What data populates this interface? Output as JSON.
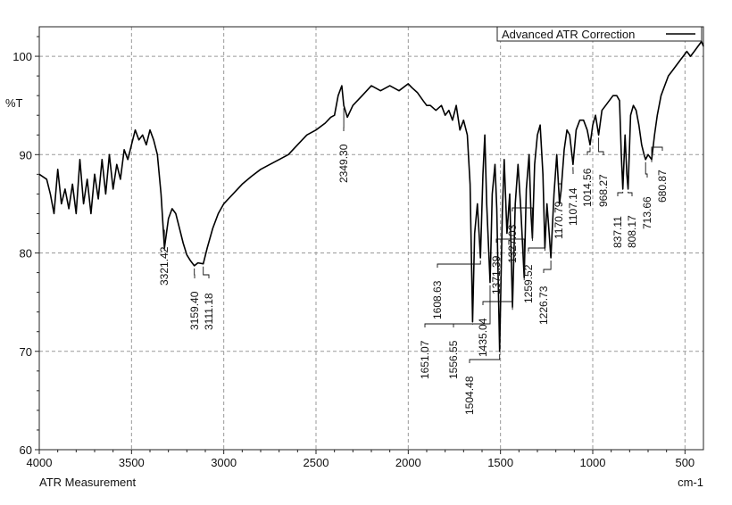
{
  "chart_data": {
    "type": "line",
    "title": "",
    "xlabel": "ATR Measurement",
    "xunit": "cm-1",
    "ylabel": "%T",
    "xlim": [
      4000,
      400
    ],
    "ylim": [
      60,
      103
    ],
    "x_reversed": true,
    "x_ticks": [
      4000,
      3500,
      3000,
      2500,
      2000,
      1500,
      1000,
      500
    ],
    "y_ticks": [
      60,
      70,
      80,
      90,
      100
    ],
    "grid": true,
    "grid_style": "dashed",
    "legend": {
      "placement": "top-right",
      "entries": [
        "Advanced ATR Correction"
      ]
    },
    "series": [
      {
        "name": "Advanced ATR Correction",
        "color": "#000000",
        "points": [
          [
            4000,
            88.0
          ],
          [
            3960,
            87.5
          ],
          [
            3940,
            86.0
          ],
          [
            3920,
            84.0
          ],
          [
            3900,
            88.5
          ],
          [
            3880,
            85.0
          ],
          [
            3860,
            86.5
          ],
          [
            3840,
            84.5
          ],
          [
            3820,
            87.0
          ],
          [
            3800,
            84.0
          ],
          [
            3780,
            89.5
          ],
          [
            3760,
            85.0
          ],
          [
            3740,
            87.5
          ],
          [
            3720,
            84.0
          ],
          [
            3700,
            88.0
          ],
          [
            3680,
            85.5
          ],
          [
            3660,
            89.5
          ],
          [
            3640,
            86.0
          ],
          [
            3620,
            90.0
          ],
          [
            3600,
            86.5
          ],
          [
            3580,
            89.0
          ],
          [
            3560,
            87.5
          ],
          [
            3540,
            90.5
          ],
          [
            3520,
            89.5
          ],
          [
            3500,
            91.0
          ],
          [
            3480,
            92.5
          ],
          [
            3460,
            91.5
          ],
          [
            3440,
            92.0
          ],
          [
            3420,
            91.0
          ],
          [
            3400,
            92.5
          ],
          [
            3380,
            91.5
          ],
          [
            3360,
            90.0
          ],
          [
            3340,
            86.0
          ],
          [
            3321.42,
            80.5
          ],
          [
            3300,
            83.5
          ],
          [
            3280,
            84.5
          ],
          [
            3260,
            84.0
          ],
          [
            3240,
            82.5
          ],
          [
            3220,
            81.0
          ],
          [
            3200,
            79.8
          ],
          [
            3180,
            79.2
          ],
          [
            3159.4,
            78.7
          ],
          [
            3140,
            79.0
          ],
          [
            3111.18,
            78.9
          ],
          [
            3090,
            80.5
          ],
          [
            3060,
            82.5
          ],
          [
            3030,
            84.0
          ],
          [
            3000,
            85.0
          ],
          [
            2950,
            86.0
          ],
          [
            2900,
            87.0
          ],
          [
            2850,
            87.8
          ],
          [
            2800,
            88.5
          ],
          [
            2750,
            89.0
          ],
          [
            2700,
            89.5
          ],
          [
            2650,
            90.0
          ],
          [
            2600,
            91.0
          ],
          [
            2550,
            92.0
          ],
          [
            2500,
            92.5
          ],
          [
            2450,
            93.2
          ],
          [
            2420,
            93.8
          ],
          [
            2400,
            94.0
          ],
          [
            2380,
            96.0
          ],
          [
            2360,
            97.0
          ],
          [
            2349.3,
            95.0
          ],
          [
            2330,
            93.8
          ],
          [
            2300,
            95.0
          ],
          [
            2250,
            96.0
          ],
          [
            2200,
            97.0
          ],
          [
            2150,
            96.5
          ],
          [
            2100,
            97.0
          ],
          [
            2050,
            96.5
          ],
          [
            2000,
            97.2
          ],
          [
            1980,
            96.8
          ],
          [
            1950,
            96.3
          ],
          [
            1920,
            95.5
          ],
          [
            1900,
            95.0
          ],
          [
            1880,
            95.0
          ],
          [
            1850,
            94.5
          ],
          [
            1820,
            95.0
          ],
          [
            1800,
            94.0
          ],
          [
            1780,
            94.5
          ],
          [
            1760,
            93.5
          ],
          [
            1740,
            95.0
          ],
          [
            1720,
            92.5
          ],
          [
            1700,
            93.5
          ],
          [
            1680,
            92.0
          ],
          [
            1665,
            87.0
          ],
          [
            1651.07,
            73.0
          ],
          [
            1640,
            82.0
          ],
          [
            1625,
            85.0
          ],
          [
            1608.63,
            79.5
          ],
          [
            1595,
            88.0
          ],
          [
            1585,
            92.0
          ],
          [
            1575,
            85.0
          ],
          [
            1556.55,
            77.0
          ],
          [
            1545,
            86.0
          ],
          [
            1530,
            89.0
          ],
          [
            1520,
            84.5
          ],
          [
            1504.48,
            70.0
          ],
          [
            1490,
            84.0
          ],
          [
            1480,
            89.5
          ],
          [
            1465,
            82.0
          ],
          [
            1450,
            86.0
          ],
          [
            1435.04,
            74.5
          ],
          [
            1420,
            85.0
          ],
          [
            1405,
            89.0
          ],
          [
            1390,
            84.5
          ],
          [
            1371.39,
            77.5
          ],
          [
            1360,
            86.5
          ],
          [
            1345,
            90.0
          ],
          [
            1335,
            84.0
          ],
          [
            1327.03,
            81.5
          ],
          [
            1315,
            89.0
          ],
          [
            1300,
            92.0
          ],
          [
            1285,
            93.0
          ],
          [
            1270,
            88.0
          ],
          [
            1259.52,
            80.5
          ],
          [
            1248,
            85.0
          ],
          [
            1240,
            83.0
          ],
          [
            1226.73,
            79.5
          ],
          [
            1210,
            86.0
          ],
          [
            1195,
            90.0
          ],
          [
            1180,
            85.0
          ],
          [
            1170.79,
            86.5
          ],
          [
            1155,
            90.5
          ],
          [
            1140,
            92.5
          ],
          [
            1125,
            92.0
          ],
          [
            1107.14,
            89.0
          ],
          [
            1090,
            92.5
          ],
          [
            1070,
            93.5
          ],
          [
            1050,
            93.5
          ],
          [
            1030,
            92.5
          ],
          [
            1014.56,
            91.0
          ],
          [
            1000,
            93.0
          ],
          [
            985,
            94.0
          ],
          [
            968.27,
            92.0
          ],
          [
            950,
            94.5
          ],
          [
            930,
            95.0
          ],
          [
            910,
            95.5
          ],
          [
            890,
            96.0
          ],
          [
            870,
            96.0
          ],
          [
            855,
            95.5
          ],
          [
            845,
            90.0
          ],
          [
            837.11,
            86.5
          ],
          [
            825,
            92.0
          ],
          [
            815,
            88.0
          ],
          [
            808.17,
            86.5
          ],
          [
            795,
            94.0
          ],
          [
            780,
            95.0
          ],
          [
            765,
            94.5
          ],
          [
            750,
            93.0
          ],
          [
            735,
            91.0
          ],
          [
            722,
            90.0
          ],
          [
            713.66,
            89.5
          ],
          [
            700,
            90.0
          ],
          [
            680.87,
            89.5
          ],
          [
            665,
            92.0
          ],
          [
            650,
            94.0
          ],
          [
            630,
            96.0
          ],
          [
            610,
            97.0
          ],
          [
            590,
            98.0
          ],
          [
            570,
            98.5
          ],
          [
            550,
            99.0
          ],
          [
            530,
            99.5
          ],
          [
            510,
            100.0
          ],
          [
            490,
            100.5
          ],
          [
            470,
            100.0
          ],
          [
            450,
            100.5
          ],
          [
            430,
            101.0
          ],
          [
            410,
            101.5
          ],
          [
            400,
            101.0
          ]
        ]
      }
    ],
    "peaks": [
      {
        "label": "3321.42",
        "x": 3321.42,
        "y": 80.5
      },
      {
        "label": "3159.40",
        "x": 3159.4,
        "y": 78.7
      },
      {
        "label": "3111.18",
        "x": 3111.18,
        "y": 78.9
      },
      {
        "label": "2349.30",
        "x": 2349.3,
        "y": 95.0
      },
      {
        "label": "1651.07",
        "x": 1651.07,
        "y": 73.0
      },
      {
        "label": "1608.63",
        "x": 1608.63,
        "y": 79.5
      },
      {
        "label": "1556.55",
        "x": 1556.55,
        "y": 77.0
      },
      {
        "label": "1504.48",
        "x": 1504.48,
        "y": 70.0
      },
      {
        "label": "1435.04",
        "x": 1435.04,
        "y": 74.5
      },
      {
        "label": "1371.39",
        "x": 1371.39,
        "y": 77.5
      },
      {
        "label": "1327.03",
        "x": 1327.03,
        "y": 81.5
      },
      {
        "label": "1259.52",
        "x": 1259.52,
        "y": 80.5
      },
      {
        "label": "1226.73",
        "x": 1226.73,
        "y": 79.5
      },
      {
        "label": "1170.79",
        "x": 1170.79,
        "y": 86.5
      },
      {
        "label": "1107.14",
        "x": 1107.14,
        "y": 89.0
      },
      {
        "label": "1014.56",
        "x": 1014.56,
        "y": 91.0
      },
      {
        "label": "968.27",
        "x": 968.27,
        "y": 92.0
      },
      {
        "label": "837.11",
        "x": 837.11,
        "y": 86.5
      },
      {
        "label": "808.17",
        "x": 808.17,
        "y": 86.5
      },
      {
        "label": "713.66",
        "x": 713.66,
        "y": 89.5
      },
      {
        "label": "680.87",
        "x": 680.87,
        "y": 89.5
      }
    ]
  }
}
